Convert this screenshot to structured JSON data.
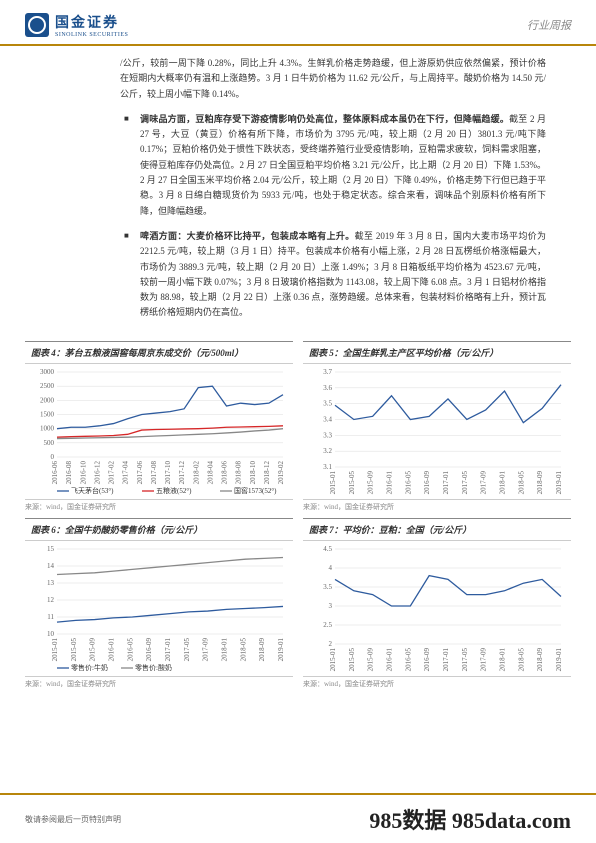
{
  "header": {
    "logo_cn": "国金证券",
    "logo_en": "SINOLINK SECURITIES",
    "right": "行业周报"
  },
  "body": {
    "p1": "/公斤，较前一周下降 0.28%，同比上升 4.3%。生鲜乳价格走势趋缓，但上游原奶供应依然偏紧，预计价格在短期内大概率仍有温和上涨趋势。3 月 1 日牛奶价格为 11.62 元/公斤，与上周持平。酸奶价格为 14.50 元/公斤，较上周小幅下降 0.14%。",
    "p2_title": "调味品方面，豆粕库存受下游疫情影响仍处高位，整体原料成本虽仍在下行，但降幅趋缓。",
    "p2": "截至 2 月 27 号，大豆（黄豆）价格有所下降，市场价为 3795 元/吨，较上期（2 月 20 日）3801.3 元/吨下降 0.17%；豆粕价格仍处于惯性下跌状态，受终端养殖行业受疫情影响，豆粕需求疲软，饲料需求阻塞，使得豆粕库存仍处高位。2 月 27 日全国豆粕平均价格 3.21 元/公斤，比上期（2 月 20 日）下降 1.53%。2 月 27 日全国玉米平均价格 2.04 元/公斤，较上期（2 月 20 日）下降 0.49%，价格走势下行但已趋于平稳。3 月 8 日绵白糖现货价为 5933 元/吨，也处于稳定状态。综合来看，调味品个别原料价格有所下降，但降幅趋缓。",
    "p3_title": "啤酒方面：大麦价格环比持平，包装成本略有上升。",
    "p3": "截至 2019 年 3 月 8 日，国内大麦市场平均价为 2212.5 元/吨，较上期（3 月 1 日）持平。包装成本价格有小幅上涨，2 月 28 日瓦楞纸价格涨幅最大，市场价为 3889.3 元/吨，较上期（2 月 20 日）上涨 1.49%；3 月 8 日箱板纸平均价格为 4523.67 元/吨，较前一周小幅下跌 0.07%；3 月 8 日玻璃价格指数为 1143.08，较上周下降 6.08 点。3 月 1 日铝材价格指数为 88.98，较上期（2 月 22 日）上涨 0.36 点，涨势趋缓。总体来看，包装材料价格略有上升，预计瓦楞纸价格短期内仍在高位。"
  },
  "charts": {
    "c4": {
      "title": "图表 4：茅台五粮液国窖每周京东成交价（元/500ml）",
      "source": "来源：wind，国金证券研究所",
      "x_labels": [
        "2016-06",
        "2016-08",
        "2016-10",
        "2016-12",
        "2017-02",
        "2017-04",
        "2017-06",
        "2017-08",
        "2017-10",
        "2017-12",
        "2018-02",
        "2018-04",
        "2018-06",
        "2018-08",
        "2018-10",
        "2018-12",
        "2019-02"
      ],
      "y_min": 0,
      "y_max": 3000,
      "y_step": 500,
      "series": [
        {
          "name": "飞天茅台(53°)",
          "color": "#2e5b9e",
          "data": [
            1000,
            1050,
            1050,
            1100,
            1180,
            1350,
            1500,
            1550,
            1600,
            1700,
            2450,
            2500,
            1800,
            1900,
            1850,
            1900,
            2200
          ]
        },
        {
          "name": "五粮液(52°)",
          "color": "#d62728",
          "data": [
            700,
            720,
            730,
            740,
            760,
            800,
            950,
            970,
            980,
            990,
            1000,
            1020,
            1050,
            1060,
            1070,
            1080,
            1100
          ]
        },
        {
          "name": "国窖1573(52°)",
          "color": "#888888",
          "data": [
            650,
            660,
            670,
            680,
            690,
            700,
            720,
            740,
            760,
            780,
            800,
            820,
            850,
            880,
            920,
            950,
            1000
          ]
        }
      ]
    },
    "c5": {
      "title": "图表 5：全国生鲜乳主产区平均价格（元/公斤）",
      "source": "来源：wind，国金证券研究所",
      "x_labels": [
        "2015-01",
        "2015-05",
        "2015-09",
        "2016-01",
        "2016-05",
        "2016-09",
        "2017-01",
        "2017-05",
        "2017-09",
        "2018-01",
        "2018-05",
        "2018-09",
        "2019-01"
      ],
      "y_min": 3.1,
      "y_max": 3.7,
      "y_step": 0.1,
      "series": [
        {
          "name": "",
          "color": "#2e5b9e",
          "data": [
            3.49,
            3.4,
            3.42,
            3.55,
            3.4,
            3.42,
            3.53,
            3.4,
            3.46,
            3.58,
            3.38,
            3.47,
            3.62
          ]
        }
      ]
    },
    "c6": {
      "title": "图表 6：全国牛奶酸奶零售价格（元/公斤）",
      "source": "来源：wind，国金证券研究所",
      "x_labels": [
        "2015-01",
        "2015-05",
        "2015-09",
        "2016-01",
        "2016-05",
        "2016-09",
        "2017-01",
        "2017-05",
        "2017-09",
        "2018-01",
        "2018-05",
        "2018-09",
        "2019-01"
      ],
      "y_min": 10,
      "y_max": 15,
      "y_step": 1,
      "series": [
        {
          "name": "零售价:牛奶",
          "color": "#2e5b9e",
          "data": [
            10.7,
            10.8,
            10.85,
            10.95,
            11.0,
            11.1,
            11.2,
            11.3,
            11.35,
            11.45,
            11.5,
            11.55,
            11.62
          ]
        },
        {
          "name": "零售价:酸奶",
          "color": "#888888",
          "data": [
            13.5,
            13.55,
            13.6,
            13.7,
            13.8,
            13.9,
            14.0,
            14.1,
            14.2,
            14.3,
            14.4,
            14.45,
            14.5
          ]
        }
      ]
    },
    "c7": {
      "title": "图表 7：平均价：豆粕：全国（元/公斤）",
      "source": "来源：wind，国金证券研究所",
      "x_labels": [
        "2015-01",
        "2015-05",
        "2015-09",
        "2016-01",
        "2016-05",
        "2016-09",
        "2017-01",
        "2017-05",
        "2017-09",
        "2018-01",
        "2018-05",
        "2018-09",
        "2019-01"
      ],
      "y_min": 2,
      "y_max": 4.5,
      "y_step": 0.5,
      "series": [
        {
          "name": "",
          "color": "#2e5b9e",
          "data": [
            3.7,
            3.4,
            3.3,
            3.0,
            3.0,
            3.8,
            3.7,
            3.3,
            3.3,
            3.4,
            3.6,
            3.7,
            3.25
          ]
        }
      ]
    }
  },
  "footer": {
    "left": "敬请参阅最后一页特别声明",
    "right": "985数据 985data.com"
  }
}
